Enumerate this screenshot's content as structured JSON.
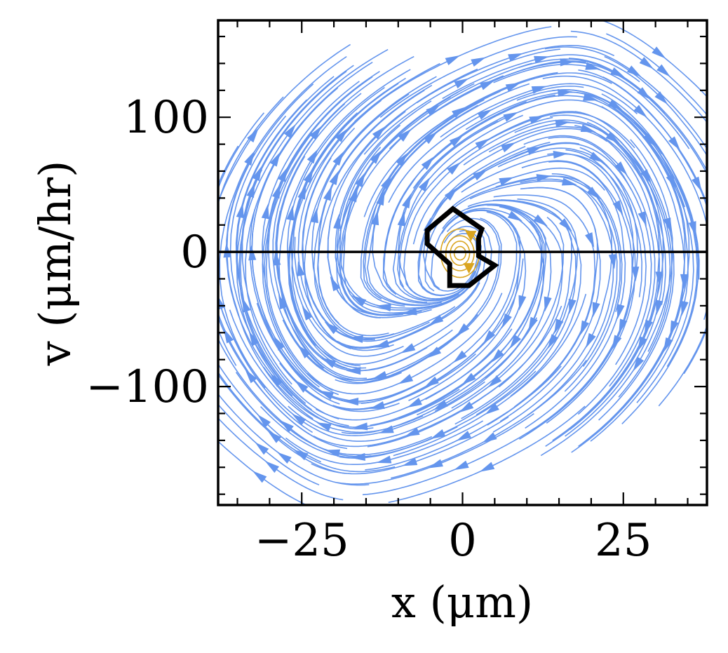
{
  "chart_data": {
    "type": "streamplot",
    "title": "",
    "xlabel": "x (μm)",
    "ylabel": "v (μm/hr)",
    "xlim": [
      -38,
      38
    ],
    "ylim": [
      -188,
      172
    ],
    "xticks": [
      -25,
      0,
      25
    ],
    "xtick_labels": [
      "−25",
      "0",
      "25"
    ],
    "yticks": [
      -100,
      0,
      100
    ],
    "ytick_labels": [
      "−100",
      "0",
      "100"
    ],
    "x_minor_step": 5,
    "y_minor_step": 20,
    "zero_line_y": 0,
    "grid": false,
    "colors": {
      "streamlines": "#6495ed",
      "trapped_streamlines": "#daa520",
      "boundary": "#000000",
      "axes": "#000000"
    },
    "trapped_region_boundary": [
      [
        -1.5,
        32
      ],
      [
        -5.5,
        16
      ],
      [
        -5.5,
        6
      ],
      [
        -2,
        -9
      ],
      [
        -2,
        -25
      ],
      [
        1,
        -25
      ],
      [
        5,
        -10
      ],
      [
        2.5,
        -3
      ],
      [
        2.5,
        10
      ],
      [
        3,
        17
      ],
      [
        -1.5,
        32
      ]
    ],
    "trapped_region_center": [
      0,
      -5
    ]
  }
}
